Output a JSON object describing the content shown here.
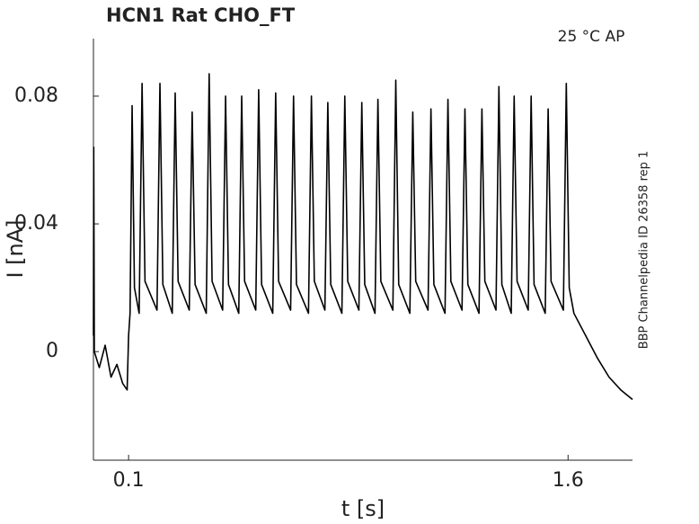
{
  "chart_data": {
    "type": "line",
    "title": "HCN1  Rat  CHO_FT",
    "annotation": "25 °C  AP",
    "side_note": "BBP Channelpedia ID 26358 rep 1",
    "xlabel": "t [s]",
    "ylabel": "I [nA]",
    "xlim": [
      -0.02,
      1.82
    ],
    "ylim": [
      -0.034,
      0.098
    ],
    "xticks": [
      0.1,
      1.6
    ],
    "yticks": [
      0,
      0.04,
      0.08
    ],
    "x": [
      -0.02,
      -0.019,
      -0.017,
      0.0,
      0.02,
      0.04,
      0.06,
      0.08,
      0.095,
      0.1,
      0.105,
      0.112,
      0.12,
      0.136,
      0.146,
      0.156,
      0.197,
      0.207,
      0.217,
      0.249,
      0.259,
      0.269,
      0.307,
      0.317,
      0.327,
      0.365,
      0.375,
      0.385,
      0.421,
      0.431,
      0.441,
      0.476,
      0.486,
      0.496,
      0.534,
      0.544,
      0.554,
      0.592,
      0.602,
      0.612,
      0.653,
      0.663,
      0.673,
      0.714,
      0.724,
      0.734,
      0.77,
      0.78,
      0.79,
      0.828,
      0.838,
      0.848,
      0.886,
      0.896,
      0.906,
      0.941,
      0.951,
      0.961,
      1.002,
      1.012,
      1.022,
      1.06,
      1.07,
      1.08,
      1.122,
      1.132,
      1.142,
      1.18,
      1.19,
      1.2,
      1.238,
      1.248,
      1.258,
      1.296,
      1.306,
      1.316,
      1.354,
      1.364,
      1.374,
      1.406,
      1.416,
      1.426,
      1.464,
      1.474,
      1.484,
      1.522,
      1.532,
      1.542,
      1.584,
      1.594,
      1.604,
      1.62,
      1.66,
      1.7,
      1.74,
      1.78,
      1.82
    ],
    "series": [
      {
        "color": "#000000",
        "values": [
          0.005,
          0.064,
          0.0,
          -0.005,
          0.002,
          -0.008,
          -0.004,
          -0.01,
          -0.012,
          0.005,
          0.012,
          0.077,
          0.02,
          0.012,
          0.084,
          0.022,
          0.013,
          0.084,
          0.021,
          0.012,
          0.081,
          0.022,
          0.013,
          0.075,
          0.021,
          0.012,
          0.087,
          0.022,
          0.013,
          0.08,
          0.021,
          0.012,
          0.08,
          0.022,
          0.013,
          0.082,
          0.021,
          0.012,
          0.081,
          0.022,
          0.013,
          0.08,
          0.021,
          0.012,
          0.08,
          0.022,
          0.013,
          0.078,
          0.021,
          0.012,
          0.08,
          0.022,
          0.013,
          0.078,
          0.021,
          0.012,
          0.079,
          0.022,
          0.013,
          0.085,
          0.021,
          0.012,
          0.075,
          0.022,
          0.013,
          0.076,
          0.021,
          0.012,
          0.079,
          0.022,
          0.013,
          0.076,
          0.021,
          0.012,
          0.076,
          0.022,
          0.013,
          0.083,
          0.021,
          0.012,
          0.08,
          0.022,
          0.013,
          0.08,
          0.021,
          0.012,
          0.076,
          0.022,
          0.013,
          0.084,
          0.02,
          0.012,
          0.005,
          -0.002,
          -0.008,
          -0.012,
          -0.015
        ]
      }
    ]
  }
}
